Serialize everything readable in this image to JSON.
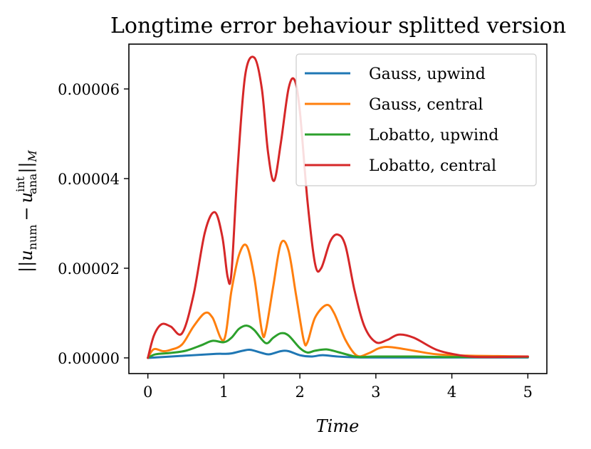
{
  "chart_data": {
    "type": "line",
    "title": "Longtime error behaviour splitted version",
    "xlabel": "Time",
    "ylabel": "||u_num − u_ana^int||_M",
    "ylabel_parts": {
      "open": "||",
      "u1": "u",
      "sub1": "num",
      "minus": "−",
      "u2": "u",
      "sub2": "ana",
      "sup2": "int",
      "close": "||",
      "subM": "M"
    },
    "xlim": [
      -0.25,
      5.25
    ],
    "ylim": [
      -3.5e-06,
      7e-05
    ],
    "xticks": [
      0,
      1,
      2,
      3,
      4,
      5
    ],
    "xtick_labels": [
      "0",
      "1",
      "2",
      "3",
      "4",
      "5"
    ],
    "yticks": [
      0,
      2e-05,
      4e-05,
      6e-05
    ],
    "ytick_labels": [
      "0.00000",
      "0.00002",
      "0.00004",
      "0.00006"
    ],
    "grid": false,
    "legend_position": "top-right",
    "series": [
      {
        "name": "Gauss, upwind",
        "color": "#1f77b4",
        "x": [
          0,
          0.5,
          0.9,
          1.0,
          1.1,
          1.25,
          1.35,
          1.5,
          1.6,
          1.75,
          1.85,
          2.0,
          2.15,
          2.3,
          2.5,
          2.8,
          3.2,
          4.0,
          5.0
        ],
        "y": [
          0,
          5e-07,
          9e-07,
          9e-07,
          1e-06,
          1.6e-06,
          1.8e-06,
          1.1e-06,
          8e-07,
          1.5e-06,
          1.5e-06,
          6e-07,
          3e-07,
          6e-07,
          3e-07,
          1e-07,
          1e-07,
          1e-07,
          1e-07
        ]
      },
      {
        "name": "Gauss, central",
        "color": "#ff7f0e",
        "x": [
          0,
          0.05,
          0.1,
          0.2,
          0.3,
          0.45,
          0.6,
          0.75,
          0.85,
          1.0,
          1.1,
          1.2,
          1.3,
          1.4,
          1.5,
          1.55,
          1.65,
          1.75,
          1.85,
          1.95,
          2.05,
          2.1,
          2.2,
          2.35,
          2.45,
          2.6,
          2.75,
          2.9,
          3.05,
          3.2,
          3.5,
          3.8,
          4.2,
          4.6,
          5.0
        ],
        "y": [
          0,
          1.5e-06,
          2e-06,
          1.5e-06,
          1.8e-06,
          3e-06,
          7e-06,
          1e-05,
          9e-06,
          4e-06,
          1.5e-05,
          2.3e-05,
          2.5e-05,
          1.8e-05,
          6e-06,
          6e-06,
          1.6e-05,
          2.55e-05,
          2.4e-05,
          1.4e-05,
          4e-06,
          3.5e-06,
          9e-06,
          1.18e-05,
          1e-05,
          4e-06,
          5e-07,
          1e-06,
          2.2e-06,
          2.4e-06,
          1.6e-06,
          8e-07,
          5e-07,
          4e-07,
          3e-07
        ]
      },
      {
        "name": "Lobatto, upwind",
        "color": "#2ca02c",
        "x": [
          0,
          0.1,
          0.3,
          0.5,
          0.7,
          0.85,
          1.0,
          1.1,
          1.2,
          1.3,
          1.4,
          1.55,
          1.65,
          1.75,
          1.85,
          2.0,
          2.1,
          2.2,
          2.35,
          2.5,
          2.7,
          2.8,
          3.0,
          3.5,
          4.0,
          5.0
        ],
        "y": [
          0,
          8e-07,
          1.1e-06,
          1.6e-06,
          2.8e-06,
          3.8e-06,
          3.5e-06,
          4.5e-06,
          6.5e-06,
          7.2e-06,
          6.2e-06,
          3.3e-06,
          4.5e-06,
          5.5e-06,
          5e-06,
          2.2e-06,
          1.2e-06,
          1.6e-06,
          1.9e-06,
          1.3e-06,
          4e-07,
          2e-07,
          3e-07,
          3e-07,
          2e-07,
          2e-07
        ]
      },
      {
        "name": "Lobatto, central",
        "color": "#d62728",
        "x": [
          0,
          0.08,
          0.18,
          0.3,
          0.45,
          0.6,
          0.75,
          0.88,
          0.98,
          1.05,
          1.1,
          1.18,
          1.28,
          1.4,
          1.5,
          1.58,
          1.66,
          1.75,
          1.85,
          1.93,
          2.0,
          2.1,
          2.2,
          2.28,
          2.4,
          2.5,
          2.6,
          2.72,
          2.85,
          3.0,
          3.15,
          3.3,
          3.5,
          3.8,
          4.1,
          4.4,
          5.0
        ],
        "y": [
          0,
          5e-06,
          7.5e-06,
          7e-06,
          5.5e-06,
          1.4e-05,
          2.8e-05,
          3.25e-05,
          2.7e-05,
          1.8e-05,
          1.9e-05,
          4.2e-05,
          6.3e-05,
          6.7e-05,
          6e-05,
          4.6e-05,
          3.95e-05,
          4.8e-05,
          6e-05,
          6.2e-05,
          5.5e-05,
          3.5e-05,
          2.1e-05,
          2e-05,
          2.6e-05,
          2.75e-05,
          2.5e-05,
          1.5e-05,
          7e-06,
          3.5e-06,
          4e-06,
          5.2e-06,
          4.5e-06,
          1.8e-06,
          6e-07,
          2e-07,
          3e-07
        ]
      }
    ]
  }
}
